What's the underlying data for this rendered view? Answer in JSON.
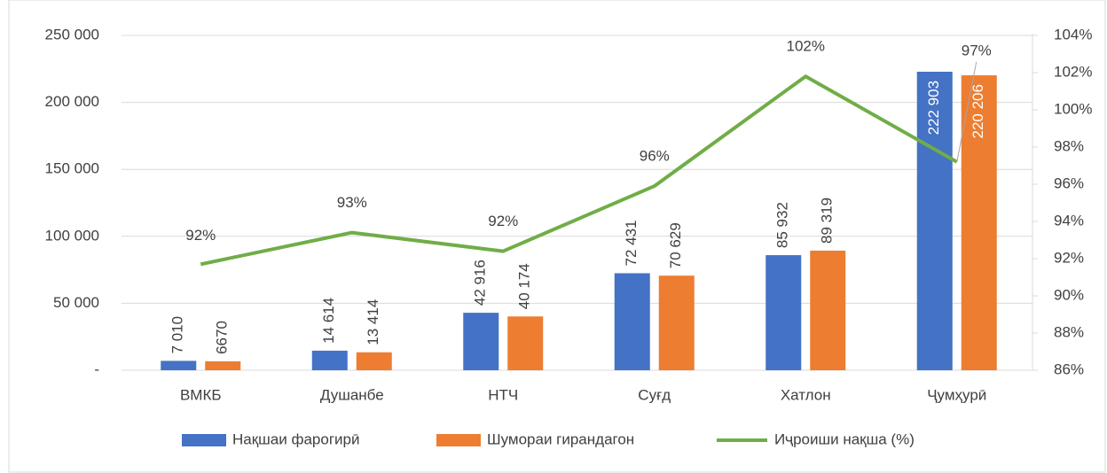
{
  "chart_data": {
    "type": "bar_line",
    "categories": [
      "ВМКБ",
      "Душанбе",
      "НТЧ",
      "Суғд",
      "Хатлон",
      "Ҷумҳурӣ"
    ],
    "series": [
      {
        "name": "Нақшаи фарогирӣ",
        "color": "#4472c4",
        "type": "bar",
        "values": [
          7010,
          14614,
          42916,
          72431,
          85932,
          222903
        ],
        "value_labels": [
          "7 010",
          "14 614",
          "42 916",
          "72 431",
          "85 932",
          "222 903"
        ]
      },
      {
        "name": "Шумораи гирандагон",
        "color": "#ed7d31",
        "type": "bar",
        "values": [
          6670,
          13414,
          40174,
          70629,
          89319,
          220206
        ],
        "value_labels": [
          "6670",
          "13 414",
          "40 174",
          "70 629",
          "89 319",
          "220 206"
        ]
      },
      {
        "name": "Иҷроиши нақша (%)",
        "color": "#70ad47",
        "type": "line",
        "axis": "y2",
        "values": [
          91.7,
          93.4,
          92.4,
          95.9,
          101.8,
          97.2
        ],
        "value_labels": [
          "92%",
          "93%",
          "92%",
          "96%",
          "102%",
          "97%"
        ]
      }
    ],
    "ylim": [
      0,
      250000
    ],
    "yticks": [
      {
        "value": 0,
        "label": "-"
      },
      {
        "value": 50000,
        "label": "50 000"
      },
      {
        "value": 100000,
        "label": "100 000"
      },
      {
        "value": 150000,
        "label": "150 000"
      },
      {
        "value": 200000,
        "label": "200 000"
      },
      {
        "value": 250000,
        "label": "250 000"
      }
    ],
    "y2lim": [
      86,
      104
    ],
    "y2ticks": [
      {
        "value": 86,
        "label": "86%"
      },
      {
        "value": 88,
        "label": "88%"
      },
      {
        "value": 90,
        "label": "90%"
      },
      {
        "value": 92,
        "label": "92%"
      },
      {
        "value": 94,
        "label": "94%"
      },
      {
        "value": 96,
        "label": "96%"
      },
      {
        "value": 98,
        "label": "98%"
      },
      {
        "value": 100,
        "label": "100%"
      },
      {
        "value": 102,
        "label": "102%"
      },
      {
        "value": 104,
        "label": "104%"
      }
    ],
    "grid": true,
    "legend": "bottom"
  }
}
